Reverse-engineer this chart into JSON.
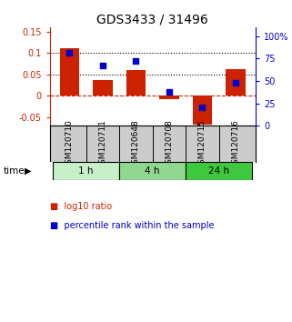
{
  "title": "GDS3433 / 31496",
  "samples": [
    "GSM120710",
    "GSM120711",
    "GSM120648",
    "GSM120708",
    "GSM120715",
    "GSM120716"
  ],
  "log10_ratio": [
    0.112,
    0.036,
    0.06,
    -0.008,
    -0.068,
    0.063
  ],
  "percentile_rank": [
    82,
    67,
    72,
    38,
    20,
    48
  ],
  "groups": [
    {
      "label": "1 h",
      "indices": [
        0,
        1
      ],
      "color": "#c8f0c8"
    },
    {
      "label": "4 h",
      "indices": [
        2,
        3
      ],
      "color": "#90d890"
    },
    {
      "label": "24 h",
      "indices": [
        4,
        5
      ],
      "color": "#3ec83e"
    }
  ],
  "bar_color": "#cc2200",
  "dot_color": "#0000cc",
  "ylim_left": [
    -0.07,
    0.16
  ],
  "ylim_right": [
    0,
    110
  ],
  "yticks_left": [
    -0.05,
    0.0,
    0.05,
    0.1,
    0.15
  ],
  "yticks_right": [
    0,
    25,
    50,
    75,
    100
  ],
  "ytick_labels_left": [
    "-0.05",
    "0",
    "0.05",
    "0.1",
    "0.15"
  ],
  "ytick_labels_right": [
    "0",
    "25",
    "50",
    "75",
    "100%"
  ],
  "hlines": [
    0.05,
    0.1
  ],
  "hline_zero_color": "#cc2200",
  "hline_dot_color": "#000000",
  "bar_width": 0.6,
  "sample_box_color": "#cccccc",
  "time_label": "time",
  "legend_bar_label": "log10 ratio",
  "legend_dot_label": "percentile rank within the sample",
  "title_fontsize": 10,
  "axis_fontsize": 7.5,
  "tick_fontsize": 7,
  "legend_fontsize": 7
}
